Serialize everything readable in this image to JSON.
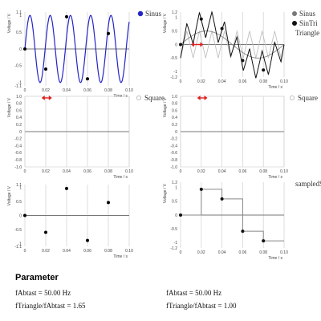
{
  "chart_data": [
    {
      "type": "line",
      "xlabel": "Time / s",
      "ylabel": "Voltage / V",
      "xlim": [
        0,
        0.1
      ],
      "ylim": [
        -1.1,
        1.1
      ],
      "xticks": [
        "0",
        "0.02",
        "0.04",
        "0.06",
        "0.08",
        "0.10"
      ],
      "yticks": [
        "1.1",
        "1",
        "0.5",
        "0",
        "-0.5",
        "-1",
        "-1.1"
      ],
      "series": [
        {
          "name": "Sinus",
          "kind": "sine",
          "color": "#2424c8",
          "amplitude": 1,
          "frequency_hz": 50,
          "phase_offset": 0
        },
        {
          "kind": "samples",
          "color": "#000000",
          "x": [
            0,
            0.02,
            0.04,
            0.06,
            0.08
          ],
          "y": [
            0,
            -0.6,
            0.96,
            -0.89,
            0.46
          ]
        }
      ],
      "legend": "right"
    },
    {
      "type": "line",
      "xlabel": "Time / s",
      "ylabel": "Voltage / V",
      "xlim": [
        0,
        0.1
      ],
      "ylim": [
        -1.2,
        1.2
      ],
      "xticks": [
        "0",
        "0.02",
        "0.04",
        "0.06",
        "0.08",
        "0.10"
      ],
      "yticks": [
        "1.2",
        "1",
        "0.5",
        "0",
        "-0.5",
        "-1",
        "-1.2"
      ],
      "series": [
        {
          "name": "Sinus",
          "kind": "sine",
          "color": "#888888",
          "amplitude": 0.5,
          "frequency_hz": 10
        },
        {
          "name": "SinTri",
          "kind": "sum",
          "color": "#111111"
        },
        {
          "name": "Triangle",
          "kind": "triangle",
          "color": "#c0c0c0",
          "amplitude": 0.5,
          "frequency_hz": 82.5
        },
        {
          "kind": "samples",
          "color": "#111111",
          "x": [
            0,
            0.02,
            0.04,
            0.06,
            0.08
          ],
          "y": [
            0,
            0.94,
            0.59,
            -0.59,
            -0.94
          ]
        }
      ],
      "legend": "right",
      "marker": "red-double-arrow"
    },
    {
      "type": "line",
      "xlabel": "Time / s",
      "ylabel": "Voltage / V",
      "xlim": [
        0,
        0.1
      ],
      "ylim": [
        -1,
        1
      ],
      "xticks": [
        "0",
        "0.02",
        "0.04",
        "0.06",
        "0.08",
        "0.10"
      ],
      "yticks": [
        "1.0",
        "0.8",
        "0.6",
        "0.4",
        "0.2",
        "0",
        "-0.2",
        "-0.4",
        "-0.6",
        "-0.8",
        "-1.0"
      ],
      "series": [
        {
          "name": "Square",
          "color": "#c8c8c8",
          "kind": "square"
        }
      ],
      "legend": "right",
      "marker": "red-double-arrow"
    },
    {
      "type": "line",
      "xlabel": "Time / s",
      "ylabel": "Voltage / V",
      "xlim": [
        0,
        0.1
      ],
      "ylim": [
        -1,
        1
      ],
      "xticks": [
        "0",
        "0.02",
        "0.04",
        "0.06",
        "0.08",
        "0.10"
      ],
      "yticks": [
        "1.0",
        "0.8",
        "0.6",
        "0.4",
        "0.2",
        "0",
        "-0.2",
        "-0.4",
        "-0.6",
        "-0.8",
        "-1.0"
      ],
      "series": [
        {
          "name": "Square",
          "color": "#c8c8c8",
          "kind": "square"
        }
      ],
      "legend": "right",
      "marker": "red-double-arrow"
    },
    {
      "type": "scatter",
      "xlabel": "Time / s",
      "ylabel": "Voltage / V",
      "xlim": [
        0,
        0.1
      ],
      "ylim": [
        -1.1,
        1.1
      ],
      "xticks": [
        "0",
        "0.02",
        "0.04",
        "0.06",
        "0.08",
        "0.10"
      ],
      "yticks": [
        "1.1",
        "1",
        "0.5",
        "0",
        "-0.5",
        "-1",
        "-1.1"
      ],
      "series": [
        {
          "name": "sampledS",
          "kind": "samples",
          "color": "#000000",
          "x": [
            0,
            0.02,
            0.04,
            0.06,
            0.08
          ],
          "y": [
            0,
            -0.6,
            0.96,
            -0.89,
            0.46
          ]
        }
      ],
      "legend": "right"
    },
    {
      "type": "line",
      "xlabel": "Time / s",
      "ylabel": "Voltage / V",
      "xlim": [
        0,
        0.1
      ],
      "ylim": [
        -1.2,
        1.2
      ],
      "xticks": [
        "0",
        "0.02",
        "0.04",
        "0.06",
        "0.08",
        "0.10"
      ],
      "yticks": [
        "1.2",
        "1",
        "0.5",
        "0",
        "-0.5",
        "-1",
        "-1.2"
      ],
      "series": [
        {
          "kind": "step",
          "color": "#888888",
          "x": [
            0,
            0.02,
            0.04,
            0.06,
            0.08,
            0.1
          ],
          "y": [
            0,
            0.94,
            0.59,
            -0.59,
            -0.94,
            -0.94
          ]
        }
      ]
    }
  ],
  "parameters": {
    "title": "Parameter",
    "left_fabtast": "fAbtast = 50.00 Hz",
    "left_ratio": "fTriangle/fAbtast = 1.65",
    "right_fabtast": "fAbtast = 50.00 Hz",
    "right_ratio": "fTriangle/fAbtast = 1.00"
  }
}
